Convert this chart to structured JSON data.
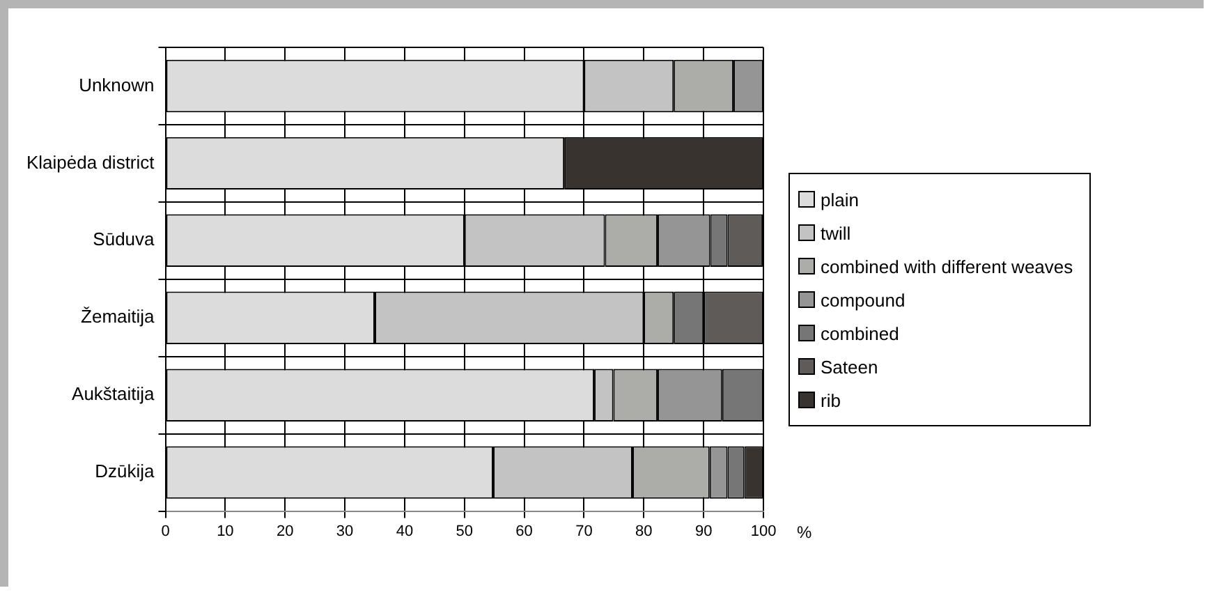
{
  "chart_data": {
    "type": "bar",
    "orientation": "horizontal",
    "stacked": true,
    "xlabel": "%",
    "categories": [
      "Unknown",
      "Klaipėda district",
      "Sūduva",
      "Žemaitija",
      "Aukštaitija",
      "Dzūkija"
    ],
    "series": [
      {
        "name": "plain",
        "color": "#dcdcdc",
        "values": [
          70,
          66.7,
          50,
          35,
          71.7,
          54.8
        ]
      },
      {
        "name": "twill",
        "color": "#c3c3c3",
        "values": [
          15,
          0,
          23.5,
          45,
          3.2,
          23.3
        ]
      },
      {
        "name": "combined with different weaves",
        "color": "#acaca9",
        "values": [
          10,
          0,
          8.8,
          5,
          7.4,
          12.9
        ]
      },
      {
        "name": "compound",
        "color": "#959595",
        "values": [
          5,
          0,
          8.8,
          0,
          10.8,
          3.0
        ]
      },
      {
        "name": "combined",
        "color": "#767676",
        "values": [
          0,
          0,
          2.9,
          5,
          6.9,
          2.8
        ]
      },
      {
        "name": "Sateen",
        "color": "#5f5b59",
        "values": [
          0,
          0,
          5.9,
          10,
          0,
          0
        ]
      },
      {
        "name": "rib",
        "color": "#393330",
        "values": [
          0,
          33.3,
          0,
          0,
          0,
          3.2
        ]
      }
    ],
    "xlim": [
      0,
      100
    ],
    "xticks": [
      0,
      10,
      20,
      30,
      40,
      50,
      60,
      70,
      80,
      90,
      100
    ],
    "grid": true,
    "legend": "right"
  }
}
